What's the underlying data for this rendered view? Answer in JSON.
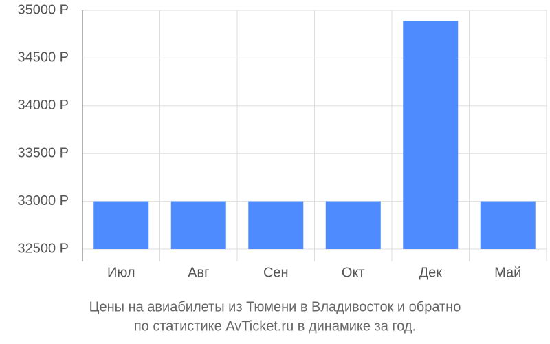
{
  "chart_data": {
    "type": "bar",
    "title": "Цены на авиабилеты из Тюмени в Владивосток и обратно",
    "subtitle": "по статистике AvTicket.ru в динамике за год.",
    "categories": [
      "Июл",
      "Авг",
      "Сен",
      "Окт",
      "Дек",
      "Май"
    ],
    "values": [
      33000,
      33000,
      33000,
      33000,
      34890,
      33000
    ],
    "color": "#4d8bff",
    "ylim": [
      32500,
      35000
    ],
    "yticks": [
      {
        "value": 32500,
        "label": "32500 Р"
      },
      {
        "value": 33000,
        "label": "33000 Р"
      },
      {
        "value": 33500,
        "label": "33500 Р"
      },
      {
        "value": 34000,
        "label": "34000 Р"
      },
      {
        "value": 34500,
        "label": "34500 Р"
      },
      {
        "value": 35000,
        "label": "35000 Р"
      }
    ],
    "grid": true
  }
}
